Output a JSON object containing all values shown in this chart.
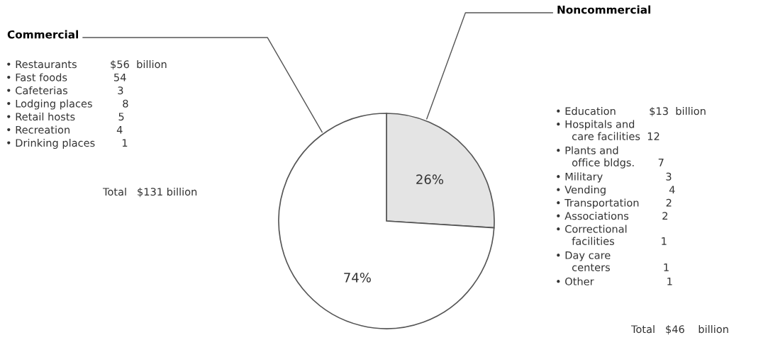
{
  "chart_data": {
    "type": "pie",
    "categories": [
      "Noncommercial",
      "Commercial"
    ],
    "values": [
      26,
      74
    ],
    "colors": [
      "#e4e4e4",
      "#ffffff"
    ],
    "value_labels": [
      "26%",
      "74%"
    ],
    "annotations": [
      "• Restaurants          $56  billion",
      "• Fast foods              54",
      "• Cafeterias               3",
      "• Lodging places         8",
      "• Retail hosts             5",
      "• Recreation              4",
      "• Drinking places        1",
      "Total   $131 billion",
      "• Education          $13  billion",
      "• Hospitals and\n     care facilities  12",
      "• Plants and\n     office bldgs.       7",
      "• Military                   3",
      "• Vending                   4",
      "• Transportation        2",
      "• Associations          2",
      "• Correctional\n     facilities              1",
      "• Day care\n     centers                1",
      "• Other                      1",
      "Total   $46    billion"
    ]
  }
}
